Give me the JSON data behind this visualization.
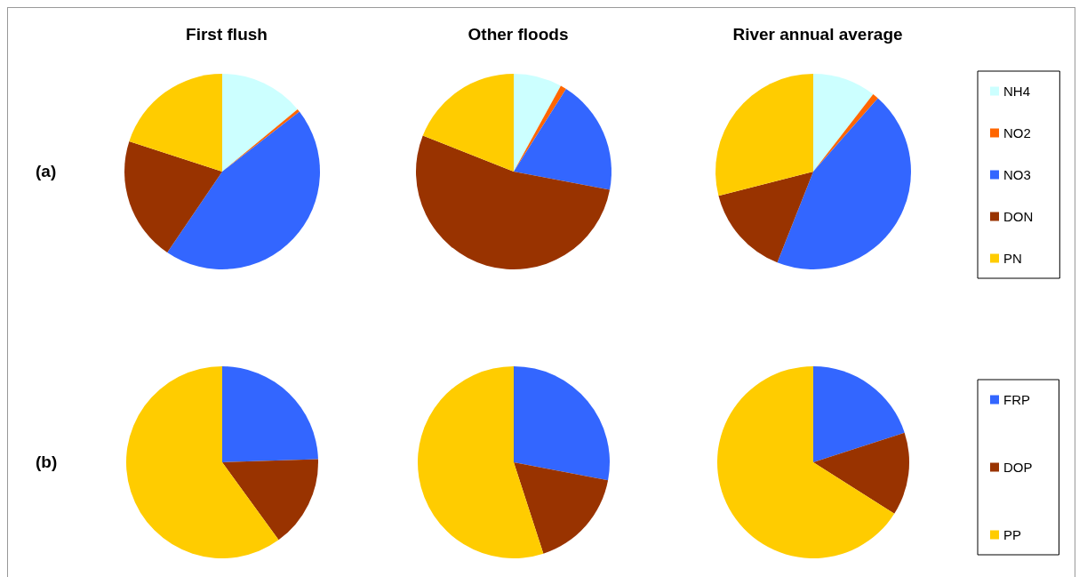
{
  "chart_data": [
    {
      "type": "pie",
      "annotations": [
        "(a)"
      ],
      "categories": [
        "NH4",
        "NO2",
        "NO3",
        "DON",
        "PN"
      ],
      "colors": [
        "#ccffff",
        "#ff6600",
        "#3366ff",
        "#993300",
        "#ffcc00"
      ],
      "legend": "right",
      "series": [
        {
          "name": "First flush",
          "values": [
            14,
            0.5,
            45,
            20.5,
            20
          ]
        },
        {
          "name": "Other floods",
          "values": [
            8,
            1,
            19,
            53,
            19
          ]
        },
        {
          "name": "River annual average",
          "values": [
            10.5,
            1,
            44.5,
            15,
            29
          ]
        }
      ]
    },
    {
      "type": "pie",
      "annotations": [
        "(b)"
      ],
      "categories": [
        "FRP",
        "DOP",
        "PP"
      ],
      "colors": [
        "#3366ff",
        "#993300",
        "#ffcc00"
      ],
      "legend": "right",
      "series": [
        {
          "values": [
            24.5,
            15.5,
            60
          ]
        },
        {
          "values": [
            28,
            17,
            55
          ]
        },
        {
          "values": [
            20,
            14,
            66
          ]
        }
      ]
    }
  ]
}
